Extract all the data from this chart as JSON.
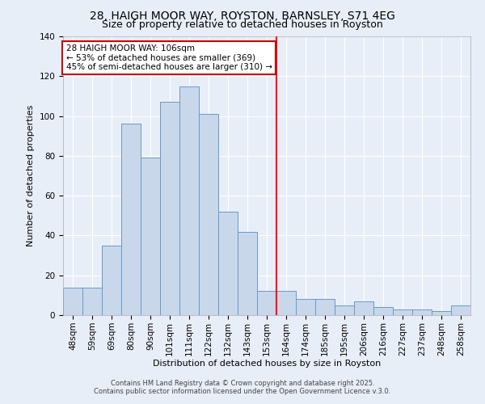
{
  "title1": "28, HAIGH MOOR WAY, ROYSTON, BARNSLEY, S71 4EG",
  "title2": "Size of property relative to detached houses in Royston",
  "xlabel": "Distribution of detached houses by size in Royston",
  "ylabel": "Number of detached properties",
  "bin_labels": [
    "48sqm",
    "59sqm",
    "69sqm",
    "80sqm",
    "90sqm",
    "101sqm",
    "111sqm",
    "122sqm",
    "132sqm",
    "143sqm",
    "153sqm",
    "164sqm",
    "174sqm",
    "185sqm",
    "195sqm",
    "206sqm",
    "216sqm",
    "227sqm",
    "237sqm",
    "248sqm",
    "258sqm"
  ],
  "bar_heights": [
    14,
    14,
    35,
    96,
    79,
    107,
    115,
    101,
    52,
    42,
    12,
    12,
    8,
    8,
    5,
    7,
    4,
    3,
    3,
    2,
    5
  ],
  "bar_color": "#c8d8ea",
  "bar_edge_color": "#6699cc",
  "reference_line_x": 10.5,
  "ylim": [
    0,
    140
  ],
  "yticks": [
    0,
    20,
    40,
    60,
    80,
    100,
    120,
    140
  ],
  "annotation_box_text": "28 HAIGH MOOR WAY: 106sqm\n← 53% of detached houses are smaller (369)\n45% of semi-detached houses are larger (310) →",
  "annotation_box_color": "#ffffff",
  "annotation_box_edge_color": "#cc0000",
  "footer1": "Contains HM Land Registry data © Crown copyright and database right 2025.",
  "footer2": "Contains public sector information licensed under the Open Government Licence v.3.0.",
  "background_color": "#e8eef8",
  "grid_color": "#d8e0ee",
  "title1_fontsize": 10,
  "title2_fontsize": 9,
  "annotation_fontsize": 7.5,
  "xlabel_fontsize": 8,
  "ylabel_fontsize": 8,
  "tick_fontsize": 7.5
}
